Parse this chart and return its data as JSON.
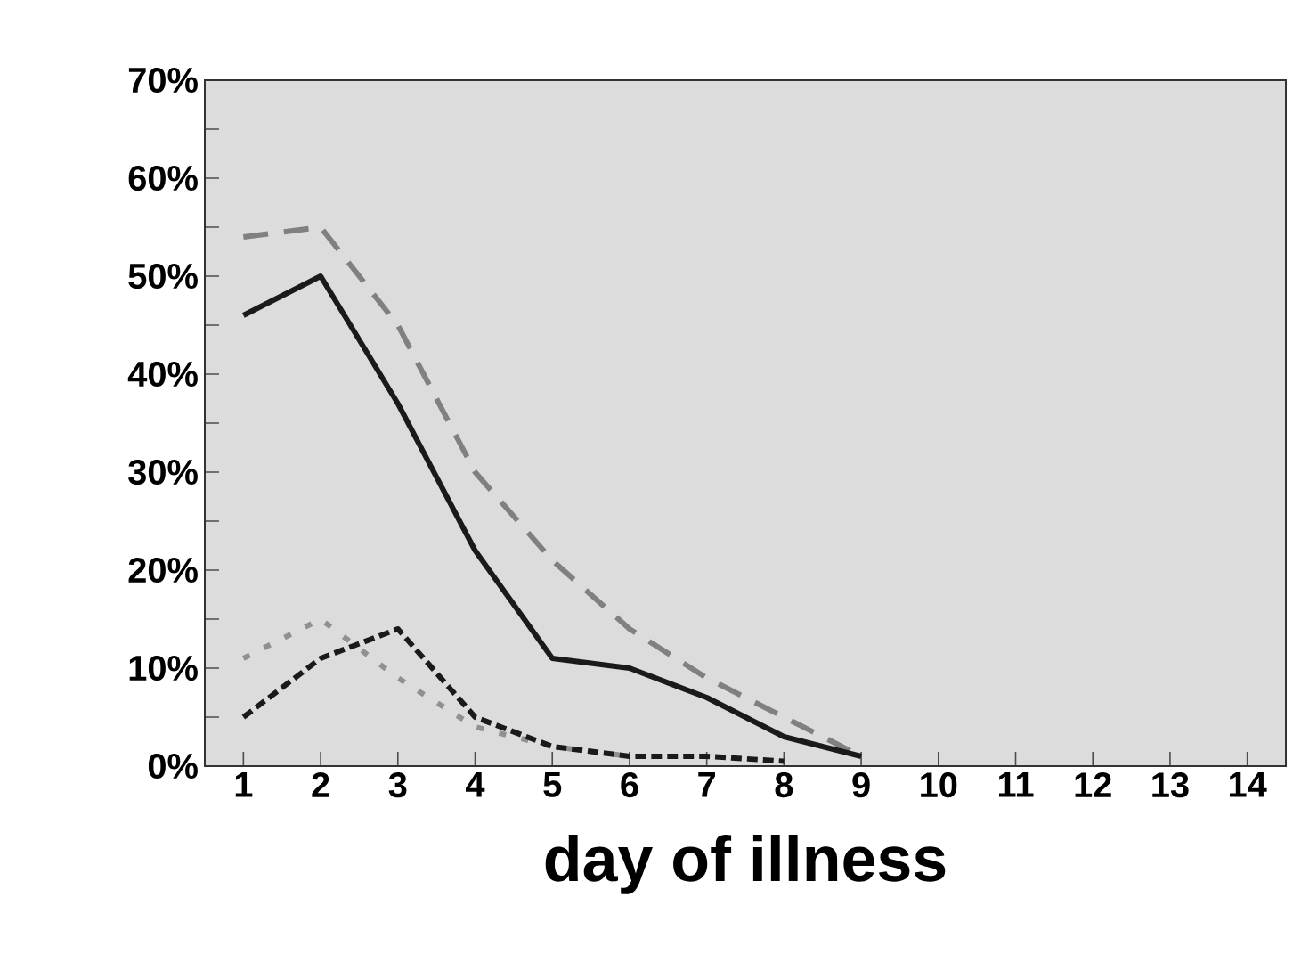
{
  "chart_data": {
    "type": "line",
    "xlabel": "day of illness",
    "x": [
      1,
      2,
      3,
      4,
      5,
      6,
      7,
      8,
      9
    ],
    "xlim": [
      0.5,
      14.5
    ],
    "xticks": [
      1,
      2,
      3,
      4,
      5,
      6,
      7,
      8,
      9,
      10,
      11,
      12,
      13,
      14
    ],
    "ylim": [
      0,
      70
    ],
    "yticks": [
      {
        "value": 0,
        "label": "0%"
      },
      {
        "value": 5,
        "label": null
      },
      {
        "value": 10,
        "label": "10%"
      },
      {
        "value": 15,
        "label": null
      },
      {
        "value": 20,
        "label": "20%"
      },
      {
        "value": 25,
        "label": null
      },
      {
        "value": 30,
        "label": "30%"
      },
      {
        "value": 35,
        "label": null
      },
      {
        "value": 40,
        "label": "40%"
      },
      {
        "value": 45,
        "label": null
      },
      {
        "value": 50,
        "label": "50%"
      },
      {
        "value": 55,
        "label": null
      },
      {
        "value": 60,
        "label": "60%"
      },
      {
        "value": 65,
        "label": null
      },
      {
        "value": 70,
        "label": "70%"
      }
    ],
    "grid": false,
    "series": [
      {
        "color": "#808080",
        "line_style": "dashed",
        "values": [
          54,
          55,
          45,
          30,
          21,
          14,
          9,
          5,
          1
        ]
      },
      {
        "color": "#1a1a1a",
        "line_style": "solid",
        "values": [
          46,
          50,
          37,
          22,
          11,
          10,
          7,
          3,
          1
        ]
      },
      {
        "color": "#909090",
        "line_style": "dotted",
        "values": [
          11,
          15,
          9,
          4,
          2,
          1,
          null,
          null,
          null
        ]
      },
      {
        "color": "#1a1a1a",
        "line_style": "densely dashed",
        "values": [
          5,
          11,
          14,
          5,
          2,
          1,
          1,
          0.5,
          null
        ]
      }
    ]
  }
}
